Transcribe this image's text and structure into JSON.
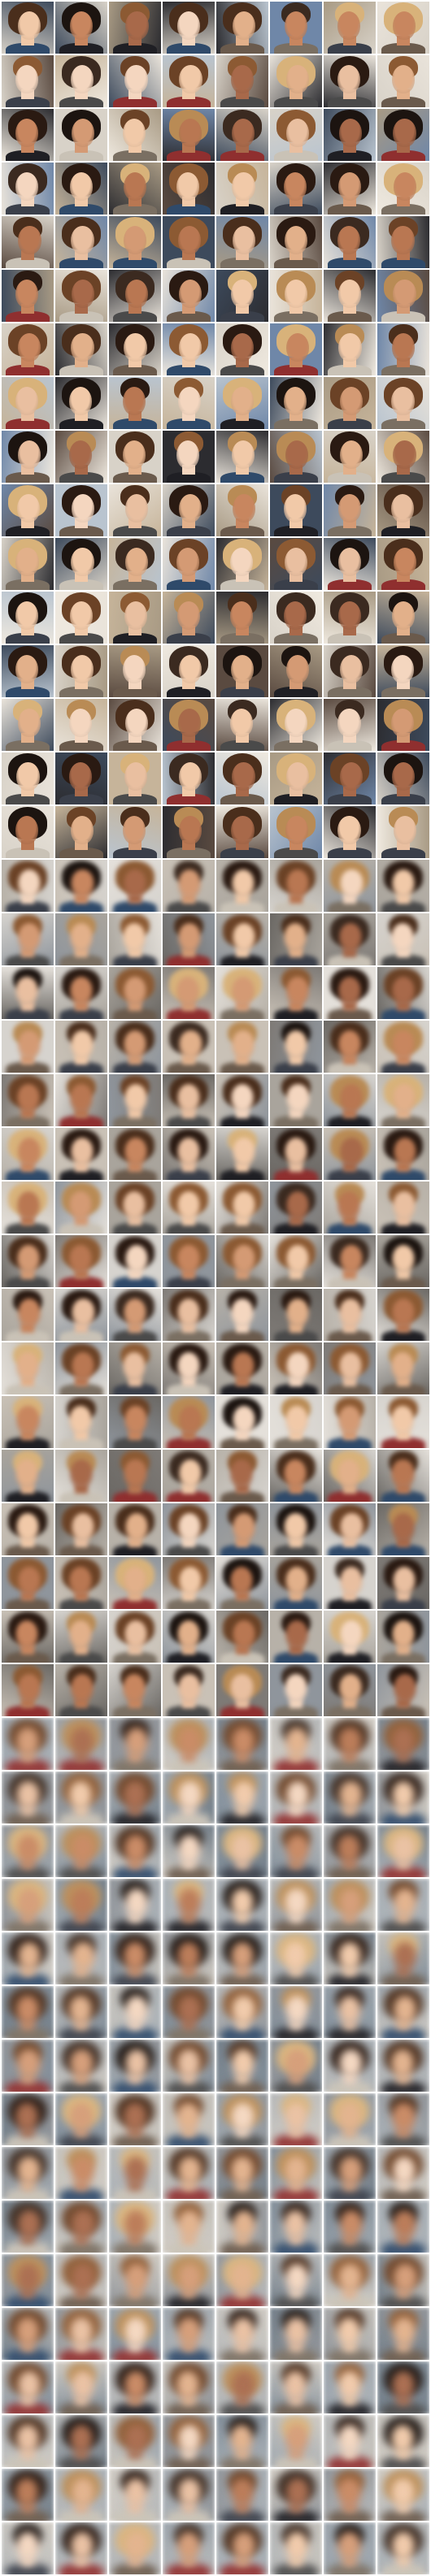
{
  "image": {
    "description_kind": "face-sample-grid",
    "columns": 8,
    "rows": 48,
    "sections": [
      {
        "name": "real-photos",
        "rows": 16,
        "style": "sharp"
      },
      {
        "name": "reconstructions-a",
        "rows": 16,
        "style": "soft"
      },
      {
        "name": "reconstructions-b",
        "rows": 16,
        "style": "blurry"
      }
    ]
  },
  "palette": {
    "skin": [
      "#f1c9a8",
      "#e2b08a",
      "#d49a74",
      "#c8865f",
      "#b97752",
      "#f4d6bf",
      "#e9bfa0",
      "#a8694a"
    ],
    "hair": [
      "#2a1a12",
      "#4a2e1c",
      "#6b4226",
      "#8c5a33",
      "#b98b55",
      "#d8b27a",
      "#1c1410",
      "#3b2a20"
    ],
    "bg_sharp": [
      "#e9e3da",
      "#2c2c30",
      "#c6b49a",
      "#6f87a8",
      "#d8d2c8",
      "#3d4a5c",
      "#a89a84",
      "#efe9df",
      "#5a4a40",
      "#b9c4cf"
    ],
    "bg_soft": [
      "#d6d3ce",
      "#a9a49c",
      "#7e7a76",
      "#c9c1b6",
      "#8f959c",
      "#b7b1a8",
      "#e4e0da",
      "#6b6864"
    ],
    "bg_blur": [
      "#9aa3ab",
      "#b4b6b7",
      "#7d8a96",
      "#c3c0ba",
      "#8e9297",
      "#a7aeb4",
      "#cfcac2",
      "#6f7b86"
    ],
    "cloth": [
      "#1f1f24",
      "#3a3f4a",
      "#6a5a4c",
      "#8f2f2f",
      "#2f4a6a",
      "#c9c2b6",
      "#4a4a4a",
      "#7a6f62"
    ]
  }
}
